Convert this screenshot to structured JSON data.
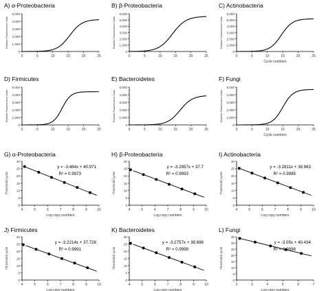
{
  "chart_data": [
    {
      "type": "line",
      "title": "A) α-Proteobacteria",
      "ylabel": "Relative Fluorescence Units",
      "xlabel": "",
      "ylim": [
        0,
        5000
      ],
      "xlim": [
        0,
        25
      ],
      "xticks": [
        0,
        5,
        10,
        15,
        20,
        25
      ],
      "yticks": [
        0,
        1000,
        2000,
        3000,
        4000,
        5000
      ],
      "ytick_labels": [
        "0",
        "1,000",
        "2,000",
        "3,000",
        "4,000",
        "5,000"
      ],
      "curve": {
        "mid": 15.5,
        "slope": 0.5,
        "max": 4250
      },
      "series": [
        {
          "values_x": [
            0,
            5,
            10,
            12,
            14,
            16,
            18,
            20,
            22,
            25
          ],
          "values_y": [
            0,
            0,
            20,
            250,
            1200,
            2300,
            3150,
            3600,
            3900,
            4100
          ]
        }
      ]
    },
    {
      "type": "line",
      "title": "B) β-Proteobacteria",
      "ylabel": "Relative Fluorescence Units",
      "xlabel": "",
      "ylim": [
        0,
        6000
      ],
      "xlim": [
        0,
        25
      ],
      "xticks": [
        0,
        5,
        10,
        15,
        20,
        25
      ],
      "yticks": [
        0,
        1000,
        2000,
        3000,
        4000,
        5000,
        6000
      ],
      "ytick_labels": [
        "0",
        "1,000",
        "2,000",
        "3,000",
        "4,000",
        "5,000",
        "6,000"
      ],
      "curve": {
        "mid": 14.0,
        "slope": 0.45,
        "max": 5600
      },
      "series": [
        {
          "values_x": [
            0,
            5,
            8,
            10,
            12,
            14,
            16,
            18,
            20,
            25
          ],
          "values_y": [
            0,
            10,
            150,
            600,
            1700,
            2800,
            3900,
            4700,
            5100,
            5500
          ]
        }
      ]
    },
    {
      "type": "line",
      "title": "C) Actinobacteria",
      "ylabel": "Relative Fluorescence Units",
      "xlabel": "Cycle numbers",
      "ylim": [
        0,
        6000
      ],
      "xlim": [
        0,
        25
      ],
      "xticks": [
        0,
        5,
        10,
        15,
        20,
        25
      ],
      "yticks": [
        0,
        1000,
        2000,
        3000,
        4000,
        5000,
        6000
      ],
      "ytick_labels": [
        "0",
        "1,000",
        "2,000",
        "3,000",
        "4,000",
        "5,000",
        "6,000"
      ],
      "curve": {
        "mid": 14.5,
        "slope": 0.55,
        "max": 5200
      },
      "series": [
        {
          "values_x": [
            0,
            5,
            10,
            12,
            14,
            16,
            18,
            20,
            25
          ],
          "values_y": [
            0,
            0,
            300,
            1000,
            2300,
            3600,
            4500,
            4900,
            5150
          ]
        }
      ]
    },
    {
      "type": "line",
      "title": "D) Firmicutes",
      "ylabel": "Relative Fluorescence Units",
      "xlabel": "",
      "ylim": [
        0,
        5000
      ],
      "xlim": [
        0,
        25
      ],
      "xticks": [
        0,
        5,
        10,
        15,
        20,
        25
      ],
      "yticks": [
        0,
        1000,
        2000,
        3000,
        4000,
        5000
      ],
      "ytick_labels": [
        "0",
        "1,000",
        "2,000",
        "3,000",
        "4,000",
        "5,000"
      ],
      "curve": {
        "mid": 13.0,
        "slope": 0.7,
        "max": 4400
      },
      "series": [
        {
          "values_x": [
            0,
            5,
            9,
            11,
            13,
            15,
            17,
            19,
            25
          ],
          "values_y": [
            0,
            0,
            200,
            900,
            2200,
            3500,
            4200,
            4400,
            4400
          ]
        }
      ]
    },
    {
      "type": "line",
      "title": "E) Bacteroidetes",
      "ylabel": "Relative Fluorescence Units",
      "xlabel": "",
      "ylim": [
        0,
        5000
      ],
      "xlim": [
        0,
        25
      ],
      "xticks": [
        0,
        5,
        10,
        15,
        20,
        25
      ],
      "yticks": [
        0,
        1000,
        2000,
        3000,
        4000,
        5000
      ],
      "ytick_labels": [
        "0",
        "1,000",
        "2,000",
        "3,000",
        "4,000",
        "5,000"
      ],
      "curve": {
        "mid": 16.5,
        "slope": 0.5,
        "max": 3900
      },
      "series": [
        {
          "values_x": [
            0,
            5,
            10,
            13,
            15,
            17,
            19,
            21,
            25
          ],
          "values_y": [
            0,
            0,
            80,
            500,
            1300,
            2200,
            2900,
            3400,
            3800
          ]
        }
      ]
    },
    {
      "type": "line",
      "title": "F) Fungi",
      "ylabel": "Relative Fluorescence Units",
      "xlabel": "Cycle numbers",
      "ylim": [
        0,
        5000
      ],
      "xlim": [
        0,
        25
      ],
      "xticks": [
        0,
        5,
        10,
        15,
        20,
        25
      ],
      "yticks": [
        0,
        1000,
        2000,
        3000,
        4000,
        5000
      ],
      "ytick_labels": [
        "0",
        "1,000",
        "2,000",
        "3,000",
        "4,000",
        "5,000"
      ],
      "curve": {
        "mid": 15.0,
        "slope": 0.6,
        "max": 4700
      },
      "series": [
        {
          "values_x": [
            0,
            5,
            10,
            12,
            14,
            16,
            18,
            20,
            25
          ],
          "values_y": [
            0,
            0,
            200,
            700,
            1800,
            3100,
            4000,
            4500,
            4700
          ]
        }
      ]
    },
    {
      "type": "scatter",
      "title": "G) α-Proteobacteria",
      "ylabel": "Threshold cycle",
      "xlabel": "Log copy numbers",
      "ylim": [
        0,
        30
      ],
      "xlim": [
        4,
        10
      ],
      "xticks": [
        4,
        5,
        6,
        7,
        8,
        9,
        10
      ],
      "yticks": [
        0,
        5,
        10,
        15,
        20,
        25,
        30
      ],
      "x": [
        4.2,
        5.3,
        6.3,
        7.3,
        8.3,
        9.3
      ],
      "y": [
        26.4,
        22.5,
        19.0,
        15.5,
        12.1,
        8.6
      ],
      "fit": {
        "slope": -3.484,
        "intercept": 40.971
      },
      "equation": "y = -3.484x + 40.971",
      "r2": "R² = 0.9973"
    },
    {
      "type": "scatter",
      "title": "H) β-Proteobacteria",
      "ylabel": "Threshold cycle",
      "xlabel": "Log copy numbers",
      "ylim": [
        0,
        30
      ],
      "xlim": [
        4,
        10
      ],
      "xticks": [
        4,
        5,
        6,
        7,
        8,
        9,
        10
      ],
      "yticks": [
        0,
        5,
        10,
        15,
        20,
        25,
        30
      ],
      "x": [
        4.1,
        5.1,
        6.1,
        7.1,
        8.1,
        9.1
      ],
      "y": [
        24.2,
        20.9,
        17.6,
        14.3,
        11.1,
        7.8
      ],
      "fit": {
        "slope": -3.2857,
        "intercept": 37.7
      },
      "equation": "y = -3.2857x + 37.7",
      "r2": "R² = 0.9993"
    },
    {
      "type": "scatter",
      "title": "I) Actinobacteria",
      "ylabel": "Threshold cycle",
      "xlabel": "Log copy numbers",
      "ylim": [
        0,
        30
      ],
      "xlim": [
        4,
        10
      ],
      "xticks": [
        4,
        5,
        6,
        7,
        8,
        9,
        10
      ],
      "yticks": [
        0,
        5,
        10,
        15,
        20,
        25,
        30
      ],
      "x": [
        4.2,
        5.2,
        6.2,
        7.2,
        8.2,
        9.2
      ],
      "y": [
        25.2,
        21.9,
        18.6,
        15.3,
        12.0,
        8.8
      ],
      "fit": {
        "slope": -3.2811,
        "intercept": 38.963
      },
      "equation": "y = -3.2811x + 38.963",
      "r2": "R² = 0.9985"
    },
    {
      "type": "scatter",
      "title": "J) Firmicutes",
      "ylabel": "Threshold cycle",
      "xlabel": "Log copy numbers",
      "ylim": [
        0,
        30
      ],
      "xlim": [
        4,
        10
      ],
      "xticks": [
        4,
        5,
        6,
        7,
        8,
        9,
        10
      ],
      "yticks": [
        0,
        5,
        10,
        15,
        20,
        25,
        30
      ],
      "x": [
        4.1,
        5.1,
        6.1,
        7.1,
        8.1,
        9.1
      ],
      "y": [
        24.5,
        21.3,
        18.1,
        14.9,
        11.8,
        8.5
      ],
      "fit": {
        "slope": -3.2214,
        "intercept": 37.728
      },
      "equation": "y = -3.2214x + 37.728",
      "r2": "R² = 0.9991"
    },
    {
      "type": "scatter",
      "title": "K) Bacteroidetes",
      "ylabel": "Threshold cycle",
      "xlabel": "Log copy numbers",
      "ylim": [
        0,
        30
      ],
      "xlim": [
        4,
        10
      ],
      "xticks": [
        4,
        5,
        6,
        7,
        8,
        9,
        10
      ],
      "yticks": [
        0,
        5,
        10,
        15,
        20,
        25,
        30
      ],
      "x": [
        4.1,
        5.1,
        6.1,
        7.1,
        8.1,
        9.1
      ],
      "y": [
        25.5,
        22.2,
        18.9,
        15.6,
        12.4,
        9.1
      ],
      "fit": {
        "slope": -3.2757,
        "intercept": 38.898
      },
      "equation": "y = -3.2757x + 38.898",
      "r2": "R² = 0.9999"
    },
    {
      "type": "scatter",
      "title": "L) Fungi",
      "ylabel": "Threshold cycle",
      "xlabel": "Log copy numbers",
      "ylim": [
        0,
        35
      ],
      "xlim": [
        2,
        7
      ],
      "xticks": [
        2,
        3,
        4,
        5,
        6,
        7
      ],
      "yticks": [
        0,
        5,
        10,
        15,
        20,
        25,
        30,
        35
      ],
      "x": [
        2.2,
        3.2,
        4.2,
        5.2,
        6.2
      ],
      "y": [
        33.7,
        30.7,
        27.6,
        24.6,
        21.5
      ],
      "fit": {
        "slope": -3.05,
        "intercept": 40.434
      },
      "equation": "y = -3.05x + 40.434",
      "r2": "R² = 0.9998"
    }
  ]
}
